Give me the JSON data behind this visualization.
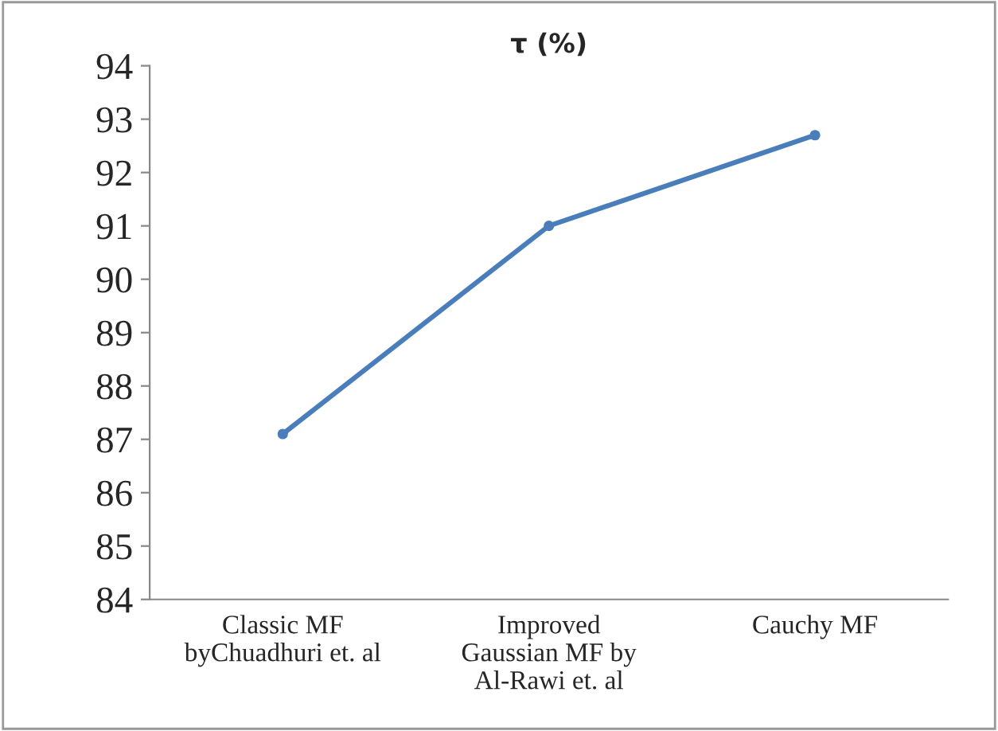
{
  "chart_data": {
    "type": "line",
    "title": "τ (%)",
    "categories": [
      "Classic MF\nbyChuadhuri et. al",
      "Improved\nGaussian MF by\nAl-Rawi et. al",
      "Cauchy MF"
    ],
    "series": [
      {
        "color": "#4a7ebb",
        "values": [
          87.1,
          91.0,
          92.7
        ]
      }
    ],
    "ylim": [
      84,
      94
    ],
    "yticks": [
      84,
      85,
      86,
      87,
      88,
      89,
      90,
      91,
      92,
      93,
      94
    ],
    "marker": "circle",
    "line_style": "solid",
    "grid": false,
    "legend": false
  }
}
